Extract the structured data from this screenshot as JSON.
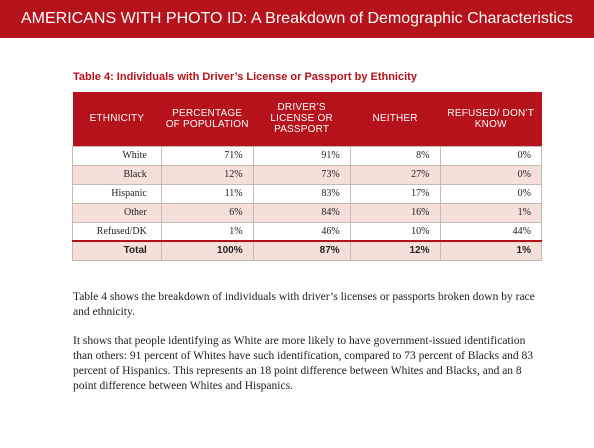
{
  "header": {
    "title": "AMERICANS WITH PHOTO ID: A Breakdown of Demographic Characteristics"
  },
  "table": {
    "title": "Table 4: Individuals with Driver’s License or Passport by Ethnicity",
    "columns": [
      "ETHNICITY",
      "PERCENTAGE OF POPULATION",
      "DRIVER’S LICENSE OR PASSPORT",
      "NEITHER",
      "REFUSED/ DON’T KNOW"
    ],
    "rows": [
      [
        "White",
        "71%",
        "91%",
        "8%",
        "0%"
      ],
      [
        "Black",
        "12%",
        "73%",
        "27%",
        "0%"
      ],
      [
        "Hispanic",
        "11%",
        "83%",
        "17%",
        "0%"
      ],
      [
        "Other",
        "6%",
        "84%",
        "16%",
        "1%"
      ],
      [
        "Refused/DK",
        "1%",
        "46%",
        "10%",
        "44%"
      ],
      [
        "Total",
        "100%",
        "87%",
        "12%",
        "1%"
      ]
    ]
  },
  "body": {
    "paragraph1": "Table 4 shows the breakdown of individuals with driver’s licenses or passports broken down by race and ethnicity.",
    "paragraph2": "It shows that people identifying as White are more likely to have government-issued identification than others: 91 percent of Whites have such identification, compared to 73 percent of Blacks and 83 percent of Hispanics. This represents an 18 point difference between Whites and Blacks, and an 8 point difference between Whites and Hispanics."
  },
  "colors": {
    "accent": "#b5121b",
    "row_shade": "#f5dfd9"
  }
}
